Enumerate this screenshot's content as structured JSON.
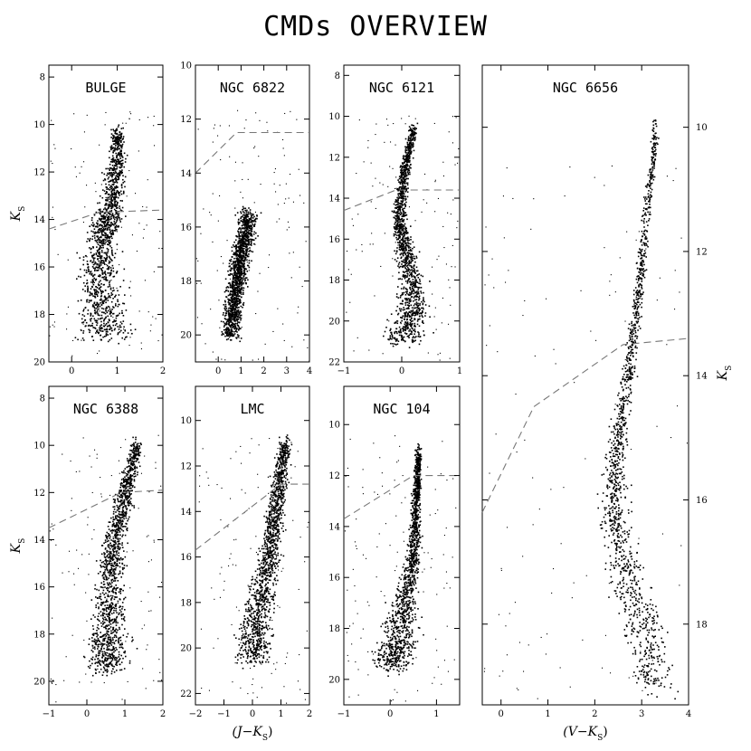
{
  "title": "CMDs OVERVIEW",
  "chart_data": [
    {
      "type": "scatter",
      "title": "BULGE",
      "xlabel": "",
      "ylabel": "K_S",
      "xlim": [
        -0.5,
        2
      ],
      "ylim": [
        20,
        7.5
      ],
      "xticks": [
        0,
        1,
        2
      ],
      "yticks": [
        8,
        10,
        12,
        14,
        16,
        18,
        20
      ],
      "tick_labels_y_side": "left",
      "dashed_line": [
        [
          -0.5,
          14.4
        ],
        [
          0.6,
          13.7
        ],
        [
          2,
          13.6
        ]
      ],
      "density_ridge": [
        [
          1.0,
          10.2
        ],
        [
          0.95,
          12.0
        ],
        [
          0.85,
          13.5
        ],
        [
          0.7,
          14.5
        ],
        [
          0.6,
          16.0
        ],
        [
          0.65,
          17.5
        ],
        [
          0.75,
          19.0
        ]
      ],
      "density_width": [
        0.12,
        0.2,
        0.25,
        0.3,
        0.35,
        0.45,
        0.55
      ]
    },
    {
      "type": "scatter",
      "title": "NGC 6822",
      "xlabel": "",
      "ylabel": "",
      "xlim": [
        -1,
        4
      ],
      "ylim": [
        21,
        10
      ],
      "xticks": [
        0,
        1,
        2,
        3,
        4
      ],
      "yticks": [
        10,
        12,
        14,
        16,
        18,
        20
      ],
      "tick_labels_y_side": "left",
      "dashed_line": [
        [
          -1,
          14.0
        ],
        [
          0.8,
          12.5
        ],
        [
          4,
          12.5
        ]
      ],
      "density_ridge": [
        [
          1.3,
          15.5
        ],
        [
          1.0,
          17.0
        ],
        [
          0.7,
          18.5
        ],
        [
          0.5,
          20.0
        ]
      ],
      "density_width": [
        0.4,
        0.35,
        0.35,
        0.4
      ]
    },
    {
      "type": "scatter",
      "title": "NGC 6121",
      "xlabel": "",
      "ylabel": "",
      "xlim": [
        -1,
        1
      ],
      "ylim": [
        22,
        7.5
      ],
      "xticks": [
        -1,
        0,
        1
      ],
      "yticks": [
        8,
        10,
        12,
        14,
        16,
        18,
        20,
        22
      ],
      "tick_labels_y_side": "left",
      "dashed_line": [
        [
          -1,
          14.6
        ],
        [
          -0.1,
          13.6
        ],
        [
          1,
          13.6
        ]
      ],
      "density_ridge": [
        [
          0.2,
          10.5
        ],
        [
          0.05,
          12.5
        ],
        [
          -0.05,
          14.5
        ],
        [
          0.0,
          16.0
        ],
        [
          0.15,
          17.5
        ],
        [
          0.2,
          19.5
        ],
        [
          0.0,
          21.0
        ]
      ],
      "density_width": [
        0.06,
        0.08,
        0.1,
        0.12,
        0.18,
        0.25,
        0.35
      ]
    },
    {
      "type": "scatter",
      "title": "NGC 6388",
      "xlabel": "",
      "ylabel": "K_S",
      "xlim": [
        -1,
        2
      ],
      "ylim": [
        21,
        7.5
      ],
      "xticks": [
        -1,
        0,
        1,
        2
      ],
      "yticks": [
        8,
        10,
        12,
        14,
        16,
        18,
        20
      ],
      "tick_labels_y_side": "left",
      "dashed_line": [
        [
          -1,
          13.5
        ],
        [
          0.9,
          12.0
        ],
        [
          2,
          11.9
        ]
      ],
      "density_ridge": [
        [
          1.3,
          10.0
        ],
        [
          1.0,
          12.0
        ],
        [
          0.7,
          14.0
        ],
        [
          0.6,
          16.0
        ],
        [
          0.55,
          18.0
        ],
        [
          0.5,
          19.5
        ]
      ],
      "density_width": [
        0.15,
        0.2,
        0.25,
        0.35,
        0.45,
        0.55
      ]
    },
    {
      "type": "scatter",
      "title": "LMC",
      "xlabel": "(J-K_S)",
      "ylabel": "",
      "xlim": [
        -2,
        2
      ],
      "ylim": [
        22.5,
        8.5
      ],
      "xticks": [
        -2,
        -1,
        0,
        1,
        2
      ],
      "yticks": [
        10,
        12,
        14,
        16,
        18,
        20,
        22
      ],
      "tick_labels_y_side": "left",
      "dashed_line": [
        [
          -2,
          15.7
        ],
        [
          1.0,
          12.8
        ],
        [
          2,
          12.8
        ]
      ],
      "density_ridge": [
        [
          1.1,
          11.0
        ],
        [
          0.9,
          13.0
        ],
        [
          0.7,
          15.0
        ],
        [
          0.4,
          17.0
        ],
        [
          0.1,
          19.0
        ],
        [
          0.0,
          20.5
        ]
      ],
      "density_width": [
        0.2,
        0.25,
        0.3,
        0.4,
        0.5,
        0.6
      ]
    },
    {
      "type": "scatter",
      "title": "NGC 104",
      "xlabel": "",
      "ylabel": "",
      "xlim": [
        -1,
        1.5
      ],
      "ylim": [
        21,
        8.5
      ],
      "xticks": [
        -1,
        0,
        1
      ],
      "yticks": [
        10,
        12,
        14,
        16,
        18,
        20
      ],
      "tick_labels_y_side": "left",
      "dashed_line": [
        [
          -1,
          13.7
        ],
        [
          0.5,
          12.0
        ],
        [
          1.5,
          12.0
        ]
      ],
      "density_ridge": [
        [
          0.6,
          11.0
        ],
        [
          0.55,
          13.0
        ],
        [
          0.5,
          15.0
        ],
        [
          0.3,
          17.0
        ],
        [
          0.15,
          18.5
        ],
        [
          0.0,
          19.5
        ]
      ],
      "density_width": [
        0.06,
        0.08,
        0.12,
        0.25,
        0.35,
        0.4
      ]
    },
    {
      "type": "scatter",
      "title": "NGC 6656",
      "xlabel": "(V-K_S)",
      "ylabel": "K_S",
      "xlim": [
        -0.4,
        4
      ],
      "ylim": [
        19.3,
        9
      ],
      "xticks": [
        0,
        1,
        2,
        3,
        4
      ],
      "yticks": [
        10,
        12,
        14,
        16,
        18
      ],
      "tick_labels_y_side": "right",
      "dashed_line": [
        [
          -0.4,
          16.2
        ],
        [
          0.7,
          14.5
        ],
        [
          2.6,
          13.5
        ],
        [
          4,
          13.4
        ]
      ],
      "density_ridge": [
        [
          3.3,
          10.0
        ],
        [
          3.0,
          12.0
        ],
        [
          2.8,
          13.5
        ],
        [
          2.5,
          15.0
        ],
        [
          2.35,
          16.0
        ],
        [
          2.6,
          17.0
        ],
        [
          3.0,
          18.0
        ],
        [
          3.3,
          19.0
        ]
      ],
      "density_width": [
        0.05,
        0.08,
        0.1,
        0.15,
        0.25,
        0.35,
        0.4,
        0.4
      ]
    }
  ]
}
